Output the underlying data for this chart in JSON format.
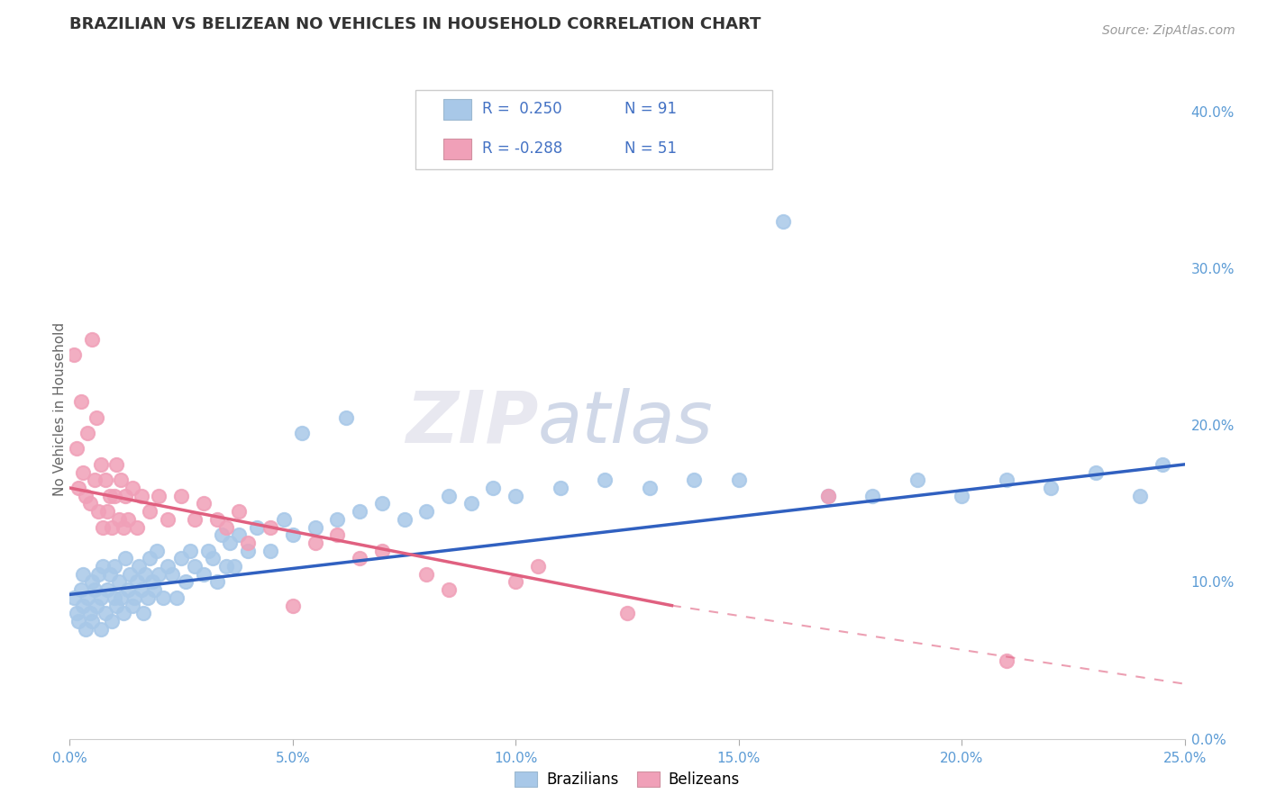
{
  "title": "BRAZILIAN VS BELIZEAN NO VEHICLES IN HOUSEHOLD CORRELATION CHART",
  "source": "Source: ZipAtlas.com",
  "xlabel_tick_vals": [
    0.0,
    5.0,
    10.0,
    15.0,
    20.0,
    25.0
  ],
  "ylabel_tick_vals": [
    0.0,
    10.0,
    20.0,
    30.0,
    40.0
  ],
  "xmin": 0.0,
  "xmax": 25.0,
  "ymin": 0.0,
  "ymax": 42.0,
  "blue_color": "#a8c8e8",
  "pink_color": "#f0a0b8",
  "blue_line_color": "#3060c0",
  "pink_line_color": "#e06080",
  "watermark": "ZIPatlas",
  "legend_label_blue": "Brazilians",
  "legend_label_pink": "Belizeans",
  "blue_scatter": [
    [
      0.1,
      9.0
    ],
    [
      0.15,
      8.0
    ],
    [
      0.2,
      7.5
    ],
    [
      0.25,
      9.5
    ],
    [
      0.3,
      10.5
    ],
    [
      0.3,
      8.5
    ],
    [
      0.35,
      7.0
    ],
    [
      0.4,
      9.0
    ],
    [
      0.45,
      8.0
    ],
    [
      0.5,
      10.0
    ],
    [
      0.5,
      7.5
    ],
    [
      0.55,
      9.5
    ],
    [
      0.6,
      8.5
    ],
    [
      0.65,
      10.5
    ],
    [
      0.7,
      7.0
    ],
    [
      0.7,
      9.0
    ],
    [
      0.75,
      11.0
    ],
    [
      0.8,
      8.0
    ],
    [
      0.85,
      9.5
    ],
    [
      0.9,
      10.5
    ],
    [
      0.95,
      7.5
    ],
    [
      1.0,
      9.0
    ],
    [
      1.0,
      11.0
    ],
    [
      1.05,
      8.5
    ],
    [
      1.1,
      10.0
    ],
    [
      1.15,
      9.0
    ],
    [
      1.2,
      8.0
    ],
    [
      1.25,
      11.5
    ],
    [
      1.3,
      9.5
    ],
    [
      1.35,
      10.5
    ],
    [
      1.4,
      8.5
    ],
    [
      1.45,
      9.0
    ],
    [
      1.5,
      10.0
    ],
    [
      1.55,
      11.0
    ],
    [
      1.6,
      9.5
    ],
    [
      1.65,
      8.0
    ],
    [
      1.7,
      10.5
    ],
    [
      1.75,
      9.0
    ],
    [
      1.8,
      11.5
    ],
    [
      1.85,
      10.0
    ],
    [
      1.9,
      9.5
    ],
    [
      1.95,
      12.0
    ],
    [
      2.0,
      10.5
    ],
    [
      2.1,
      9.0
    ],
    [
      2.2,
      11.0
    ],
    [
      2.3,
      10.5
    ],
    [
      2.4,
      9.0
    ],
    [
      2.5,
      11.5
    ],
    [
      2.6,
      10.0
    ],
    [
      2.7,
      12.0
    ],
    [
      2.8,
      11.0
    ],
    [
      3.0,
      10.5
    ],
    [
      3.1,
      12.0
    ],
    [
      3.2,
      11.5
    ],
    [
      3.3,
      10.0
    ],
    [
      3.4,
      13.0
    ],
    [
      3.5,
      11.0
    ],
    [
      3.6,
      12.5
    ],
    [
      3.7,
      11.0
    ],
    [
      3.8,
      13.0
    ],
    [
      4.0,
      12.0
    ],
    [
      4.2,
      13.5
    ],
    [
      4.5,
      12.0
    ],
    [
      4.8,
      14.0
    ],
    [
      5.0,
      13.0
    ],
    [
      5.2,
      19.5
    ],
    [
      5.5,
      13.5
    ],
    [
      6.0,
      14.0
    ],
    [
      6.2,
      20.5
    ],
    [
      6.5,
      14.5
    ],
    [
      7.0,
      15.0
    ],
    [
      7.5,
      14.0
    ],
    [
      8.0,
      14.5
    ],
    [
      8.5,
      15.5
    ],
    [
      9.0,
      15.0
    ],
    [
      9.5,
      16.0
    ],
    [
      10.0,
      15.5
    ],
    [
      11.0,
      16.0
    ],
    [
      12.0,
      16.5
    ],
    [
      13.0,
      16.0
    ],
    [
      14.0,
      16.5
    ],
    [
      15.0,
      16.5
    ],
    [
      16.0,
      33.0
    ],
    [
      17.0,
      15.5
    ],
    [
      18.0,
      15.5
    ],
    [
      19.0,
      16.5
    ],
    [
      20.0,
      15.5
    ],
    [
      21.0,
      16.5
    ],
    [
      22.0,
      16.0
    ],
    [
      23.0,
      17.0
    ],
    [
      24.0,
      15.5
    ],
    [
      24.5,
      17.5
    ]
  ],
  "pink_scatter": [
    [
      0.1,
      24.5
    ],
    [
      0.15,
      18.5
    ],
    [
      0.2,
      16.0
    ],
    [
      0.25,
      21.5
    ],
    [
      0.3,
      17.0
    ],
    [
      0.35,
      15.5
    ],
    [
      0.4,
      19.5
    ],
    [
      0.45,
      15.0
    ],
    [
      0.5,
      25.5
    ],
    [
      0.55,
      16.5
    ],
    [
      0.6,
      20.5
    ],
    [
      0.65,
      14.5
    ],
    [
      0.7,
      17.5
    ],
    [
      0.75,
      13.5
    ],
    [
      0.8,
      16.5
    ],
    [
      0.85,
      14.5
    ],
    [
      0.9,
      15.5
    ],
    [
      0.95,
      13.5
    ],
    [
      1.0,
      15.5
    ],
    [
      1.05,
      17.5
    ],
    [
      1.1,
      14.0
    ],
    [
      1.15,
      16.5
    ],
    [
      1.2,
      13.5
    ],
    [
      1.25,
      15.5
    ],
    [
      1.3,
      14.0
    ],
    [
      1.4,
      16.0
    ],
    [
      1.5,
      13.5
    ],
    [
      1.6,
      15.5
    ],
    [
      1.8,
      14.5
    ],
    [
      2.0,
      15.5
    ],
    [
      2.2,
      14.0
    ],
    [
      2.5,
      15.5
    ],
    [
      2.8,
      14.0
    ],
    [
      3.0,
      15.0
    ],
    [
      3.3,
      14.0
    ],
    [
      3.5,
      13.5
    ],
    [
      3.8,
      14.5
    ],
    [
      4.0,
      12.5
    ],
    [
      4.5,
      13.5
    ],
    [
      5.0,
      8.5
    ],
    [
      5.5,
      12.5
    ],
    [
      6.0,
      13.0
    ],
    [
      6.5,
      11.5
    ],
    [
      7.0,
      12.0
    ],
    [
      8.0,
      10.5
    ],
    [
      8.5,
      9.5
    ],
    [
      10.0,
      10.0
    ],
    [
      10.5,
      11.0
    ],
    [
      12.5,
      8.0
    ],
    [
      17.0,
      15.5
    ],
    [
      21.0,
      5.0
    ]
  ],
  "blue_trendline": [
    [
      0.0,
      9.2
    ],
    [
      25.0,
      17.5
    ]
  ],
  "pink_trendline_solid": [
    [
      0.0,
      16.0
    ],
    [
      13.5,
      8.5
    ]
  ],
  "pink_trendline_dashed": [
    [
      13.5,
      8.5
    ],
    [
      25.0,
      3.5
    ]
  ]
}
